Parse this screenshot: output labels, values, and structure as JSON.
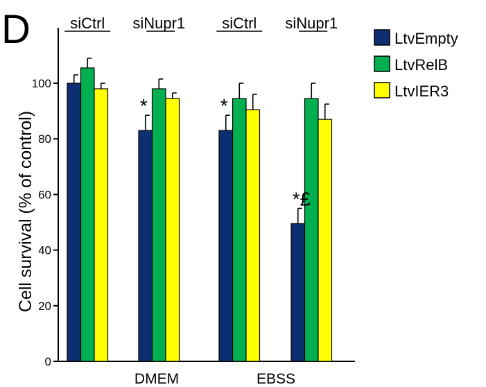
{
  "panel_label": "D",
  "chart_data": {
    "type": "bar",
    "ylabel": "Cell survival (% of control)",
    "xlabel": "",
    "ylim": [
      0,
      100
    ],
    "yticks": [
      0,
      20,
      40,
      60,
      80,
      100
    ],
    "grid": false,
    "legend_position": "top-right",
    "groups": [
      "DMEM",
      "EBSS"
    ],
    "categories": [
      "siCtrl",
      "siNupr1",
      "siCtrl",
      "siNupr1"
    ],
    "category_group": [
      0,
      0,
      1,
      1
    ],
    "series": [
      {
        "name": "LtvEmpty",
        "color": "#0d2f72",
        "values": [
          100,
          83,
          83,
          49.5
        ],
        "errors": [
          3,
          5.5,
          5.5,
          5.5
        ]
      },
      {
        "name": "LtvRelB",
        "color": "#00b050",
        "values": [
          105.5,
          98,
          94.5,
          94.5
        ],
        "errors": [
          3.5,
          3.5,
          5.5,
          5.5
        ]
      },
      {
        "name": "LtvIER3",
        "color": "#ffff00",
        "values": [
          98,
          94.5,
          90.5,
          87
        ],
        "errors": [
          2,
          2,
          5.5,
          5.5
        ]
      }
    ],
    "annotations": [
      {
        "text": "*",
        "category": 1,
        "series": 0
      },
      {
        "text": "*",
        "category": 2,
        "series": 0
      },
      {
        "text": "*£",
        "category": 3,
        "series": 0
      }
    ]
  }
}
